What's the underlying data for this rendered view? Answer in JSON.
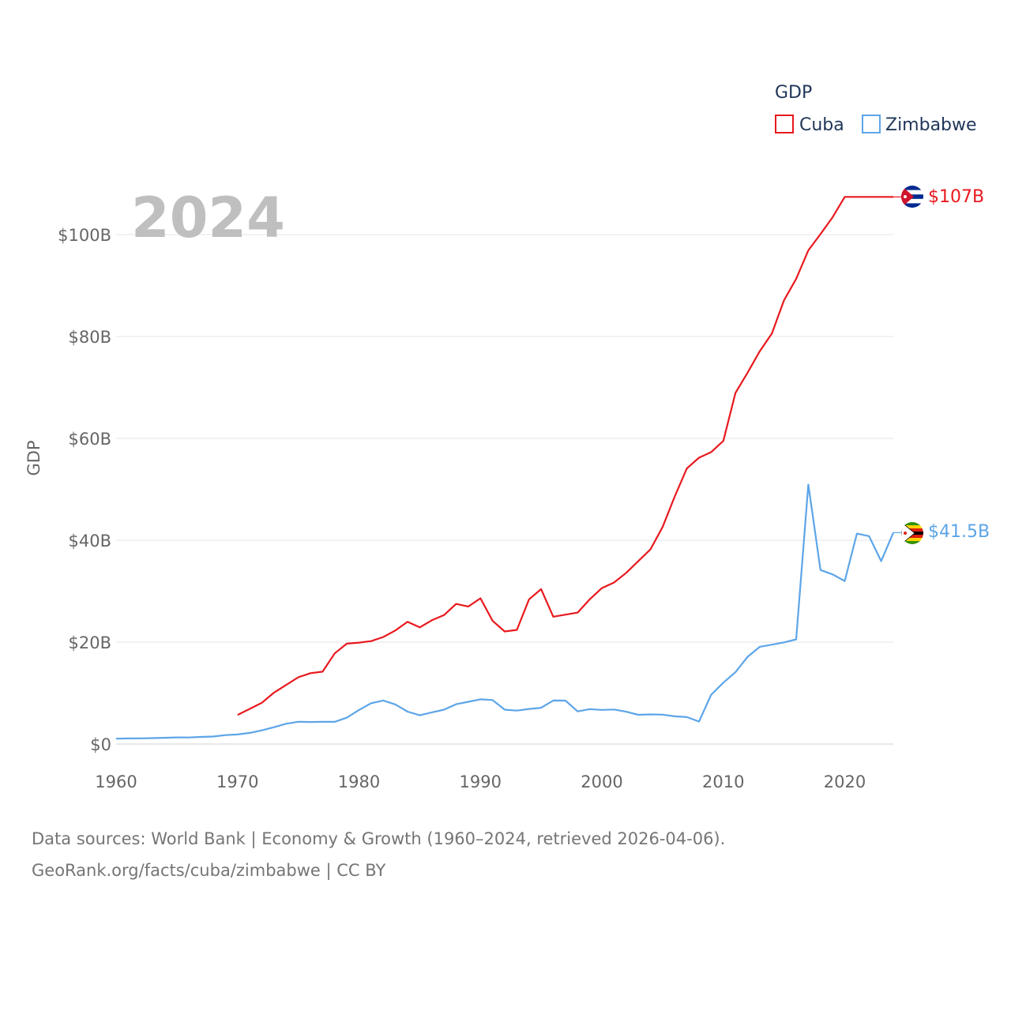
{
  "chart_data": {
    "type": "line",
    "year_label": "2024",
    "ylabel": "GDP",
    "xlim": [
      1960,
      2024
    ],
    "ylim": [
      0,
      110
    ],
    "x_ticks": [
      {
        "value": 1960,
        "label": "1960"
      },
      {
        "value": 1970,
        "label": "1970"
      },
      {
        "value": 1980,
        "label": "1980"
      },
      {
        "value": 1990,
        "label": "1990"
      },
      {
        "value": 2000,
        "label": "2000"
      },
      {
        "value": 2010,
        "label": "2010"
      },
      {
        "value": 2020,
        "label": "2020"
      }
    ],
    "y_ticks": [
      {
        "value": 0,
        "label": "$0"
      },
      {
        "value": 20,
        "label": "$20B"
      },
      {
        "value": 40,
        "label": "$40B"
      },
      {
        "value": 60,
        "label": "$60B"
      },
      {
        "value": 80,
        "label": "$80B"
      },
      {
        "value": 100,
        "label": "$100B"
      }
    ],
    "legend": {
      "title": "GDP",
      "position": "top-right"
    },
    "series": [
      {
        "name": "Cuba",
        "color": "#e8191e",
        "end_label": "$107B",
        "flag": "cuba-flag-icon",
        "points": [
          [
            1970,
            5.7
          ],
          [
            1971,
            6.9
          ],
          [
            1972,
            8.1
          ],
          [
            1973,
            10.1
          ],
          [
            1974,
            11.6
          ],
          [
            1975,
            13.1
          ],
          [
            1976,
            13.9
          ],
          [
            1977,
            14.2
          ],
          [
            1978,
            17.8
          ],
          [
            1979,
            19.7
          ],
          [
            1980,
            19.9
          ],
          [
            1981,
            20.2
          ],
          [
            1982,
            21.0
          ],
          [
            1983,
            22.3
          ],
          [
            1984,
            24.0
          ],
          [
            1985,
            22.9
          ],
          [
            1986,
            24.3
          ],
          [
            1987,
            25.3
          ],
          [
            1988,
            27.5
          ],
          [
            1989,
            27.0
          ],
          [
            1990,
            28.6
          ],
          [
            1991,
            24.2
          ],
          [
            1992,
            22.1
          ],
          [
            1993,
            22.4
          ],
          [
            1994,
            28.4
          ],
          [
            1995,
            30.4
          ],
          [
            1996,
            25.0
          ],
          [
            1997,
            25.4
          ],
          [
            1998,
            25.8
          ],
          [
            1999,
            28.4
          ],
          [
            2000,
            30.6
          ],
          [
            2001,
            31.7
          ],
          [
            2002,
            33.6
          ],
          [
            2003,
            35.9
          ],
          [
            2004,
            38.2
          ],
          [
            2005,
            42.6
          ],
          [
            2006,
            48.6
          ],
          [
            2007,
            54.1
          ],
          [
            2008,
            56.2
          ],
          [
            2009,
            57.3
          ],
          [
            2010,
            59.5
          ],
          [
            2011,
            68.9
          ],
          [
            2012,
            72.9
          ],
          [
            2013,
            77.1
          ],
          [
            2014,
            80.6
          ],
          [
            2015,
            87.1
          ],
          [
            2016,
            91.3
          ],
          [
            2017,
            96.9
          ],
          [
            2018,
            100.1
          ],
          [
            2019,
            103.4
          ],
          [
            2020,
            107.4
          ],
          [
            2021,
            107.4
          ],
          [
            2022,
            107.4
          ],
          [
            2023,
            107.4
          ],
          [
            2024,
            107.4
          ]
        ]
      },
      {
        "name": "Zimbabwe",
        "color": "#5da5e8",
        "end_label": "$41.5B",
        "flag": "zimbabwe-flag-icon",
        "points": [
          [
            1960,
            1.05
          ],
          [
            1961,
            1.1
          ],
          [
            1962,
            1.12
          ],
          [
            1963,
            1.16
          ],
          [
            1964,
            1.22
          ],
          [
            1965,
            1.3
          ],
          [
            1966,
            1.28
          ],
          [
            1967,
            1.4
          ],
          [
            1968,
            1.48
          ],
          [
            1969,
            1.75
          ],
          [
            1970,
            1.88
          ],
          [
            1971,
            2.18
          ],
          [
            1972,
            2.68
          ],
          [
            1973,
            3.31
          ],
          [
            1974,
            3.99
          ],
          [
            1975,
            4.37
          ],
          [
            1976,
            4.32
          ],
          [
            1977,
            4.36
          ],
          [
            1978,
            4.35
          ],
          [
            1979,
            5.18
          ],
          [
            1980,
            6.68
          ],
          [
            1981,
            8.01
          ],
          [
            1982,
            8.54
          ],
          [
            1983,
            7.76
          ],
          [
            1984,
            6.35
          ],
          [
            1985,
            5.64
          ],
          [
            1986,
            6.22
          ],
          [
            1987,
            6.74
          ],
          [
            1988,
            7.81
          ],
          [
            1989,
            8.29
          ],
          [
            1990,
            8.78
          ],
          [
            1991,
            8.64
          ],
          [
            1992,
            6.75
          ],
          [
            1993,
            6.56
          ],
          [
            1994,
            6.89
          ],
          [
            1995,
            7.11
          ],
          [
            1996,
            8.55
          ],
          [
            1997,
            8.53
          ],
          [
            1998,
            6.4
          ],
          [
            1999,
            6.86
          ],
          [
            2000,
            6.69
          ],
          [
            2001,
            6.78
          ],
          [
            2002,
            6.34
          ],
          [
            2003,
            5.73
          ],
          [
            2004,
            5.81
          ],
          [
            2005,
            5.76
          ],
          [
            2006,
            5.44
          ],
          [
            2007,
            5.29
          ],
          [
            2008,
            4.42
          ],
          [
            2009,
            9.67
          ],
          [
            2010,
            12.04
          ],
          [
            2011,
            14.1
          ],
          [
            2012,
            17.11
          ],
          [
            2013,
            19.09
          ],
          [
            2014,
            19.5
          ],
          [
            2015,
            19.96
          ],
          [
            2016,
            20.55
          ],
          [
            2017,
            50.93
          ],
          [
            2018,
            34.16
          ],
          [
            2019,
            33.3
          ],
          [
            2020,
            32.0
          ],
          [
            2021,
            41.3
          ],
          [
            2022,
            40.8
          ],
          [
            2023,
            35.9
          ],
          [
            2024,
            41.5
          ]
        ]
      }
    ]
  },
  "footer": {
    "source_line": "Data sources: World Bank | Economy & Growth (1960–2024, retrieved 2026-04-06).",
    "credit_line": "GeoRank.org/facts/cuba/zimbabwe | CC BY"
  }
}
